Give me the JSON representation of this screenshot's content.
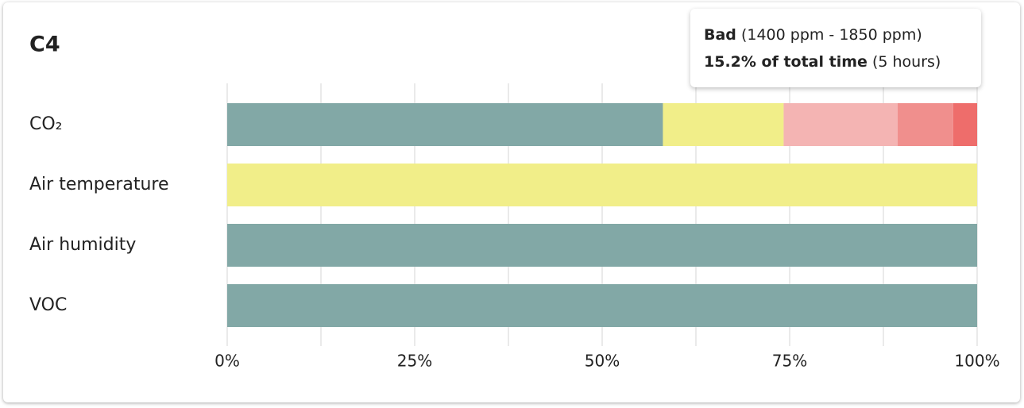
{
  "chart_data": {
    "type": "stacked-bar-horizontal",
    "title": "C4",
    "categories": [
      "CO₂",
      "Air temperature",
      "Air humidity",
      "VOC"
    ],
    "series": [
      {
        "color": "#82a8a6",
        "values": [
          58.1,
          0,
          100,
          100
        ]
      },
      {
        "color": "#f1ee89",
        "values": [
          16.1,
          100,
          0,
          0
        ]
      },
      {
        "color": "#f4b4b3",
        "values": [
          15.2,
          0,
          0,
          0
        ]
      },
      {
        "color": "#f08f8d",
        "values": [
          7.4,
          0,
          0,
          0
        ]
      },
      {
        "color": "#ee6d6b",
        "values": [
          3.2,
          0,
          0,
          0
        ]
      }
    ],
    "xlim": [
      0,
      100
    ],
    "xticks": [
      {
        "value": 0,
        "label": "0%"
      },
      {
        "value": 25,
        "label": "25%"
      },
      {
        "value": 50,
        "label": "50%"
      },
      {
        "value": 75,
        "label": "75%"
      },
      {
        "value": 100,
        "label": "100%"
      }
    ],
    "minor_xticks": [
      12.5,
      37.5,
      62.5,
      87.5
    ],
    "grid": true,
    "tooltip": {
      "label": "Bad",
      "range": "(1400 ppm - 1850 ppm)",
      "share": "15.2% of total time",
      "duration": "(5 hours)"
    }
  }
}
